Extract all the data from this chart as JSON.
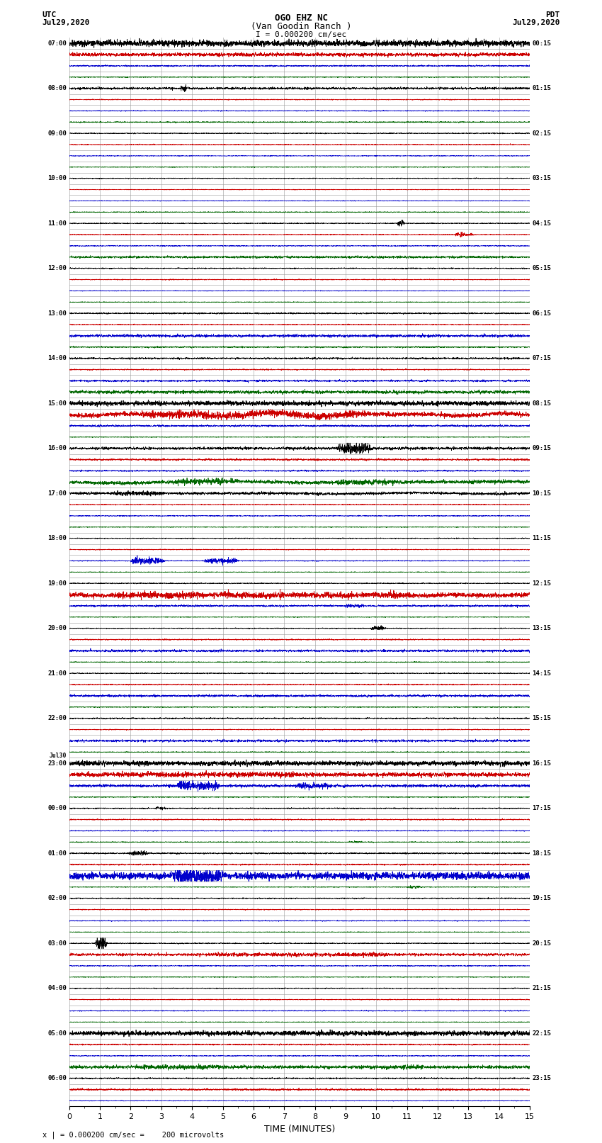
{
  "title_line1": "OGO EHZ NC",
  "title_line2": "(Van Goodin Ranch )",
  "scale_label": "I = 0.000200 cm/sec",
  "footer_label": "x | = 0.000200 cm/sec =    200 microvolts",
  "utc_label_line1": "UTC",
  "utc_label_line2": "Jul29,2020",
  "pdt_label_line1": "PDT",
  "pdt_label_line2": "Jul29,2020",
  "xlabel": "TIME (MINUTES)",
  "bg_color": "#ffffff",
  "grid_color": "#999999",
  "colors_cycle": [
    "#000000",
    "#cc0000",
    "#0000cc",
    "#006600"
  ],
  "x_min": 0,
  "x_max": 15,
  "x_ticks": [
    0,
    1,
    2,
    3,
    4,
    5,
    6,
    7,
    8,
    9,
    10,
    11,
    12,
    13,
    14,
    15
  ],
  "n_rows": 95,
  "left_times": [
    "07:00",
    "",
    "",
    "",
    "08:00",
    "",
    "",
    "",
    "09:00",
    "",
    "",
    "",
    "10:00",
    "",
    "",
    "",
    "11:00",
    "",
    "",
    "",
    "12:00",
    "",
    "",
    "",
    "13:00",
    "",
    "",
    "",
    "14:00",
    "",
    "",
    "",
    "15:00",
    "",
    "",
    "",
    "16:00",
    "",
    "",
    "",
    "17:00",
    "",
    "",
    "",
    "18:00",
    "",
    "",
    "",
    "19:00",
    "",
    "",
    "",
    "20:00",
    "",
    "",
    "",
    "21:00",
    "",
    "",
    "",
    "22:00",
    "",
    "",
    "",
    "23:00",
    "",
    "",
    "",
    "00:00",
    "",
    "",
    "",
    "01:00",
    "",
    "",
    "",
    "02:00",
    "",
    "",
    "",
    "03:00",
    "",
    "",
    "",
    "04:00",
    "",
    "",
    "",
    "05:00",
    "",
    "",
    "",
    "06:00",
    "",
    ""
  ],
  "right_times": [
    "00:15",
    "",
    "",
    "",
    "01:15",
    "",
    "",
    "",
    "02:15",
    "",
    "",
    "",
    "03:15",
    "",
    "",
    "",
    "04:15",
    "",
    "",
    "",
    "05:15",
    "",
    "",
    "",
    "06:15",
    "",
    "",
    "",
    "07:15",
    "",
    "",
    "",
    "08:15",
    "",
    "",
    "",
    "09:15",
    "",
    "",
    "",
    "10:15",
    "",
    "",
    "",
    "11:15",
    "",
    "",
    "",
    "12:15",
    "",
    "",
    "",
    "13:15",
    "",
    "",
    "",
    "14:15",
    "",
    "",
    "",
    "15:15",
    "",
    "",
    "",
    "16:15",
    "",
    "",
    "",
    "17:15",
    "",
    "",
    "",
    "18:15",
    "",
    "",
    "",
    "19:15",
    "",
    "",
    "",
    "20:15",
    "",
    "",
    "",
    "21:15",
    "",
    "",
    "",
    "22:15",
    "",
    "",
    "",
    "23:15",
    "",
    ""
  ],
  "jul30_row": 64
}
